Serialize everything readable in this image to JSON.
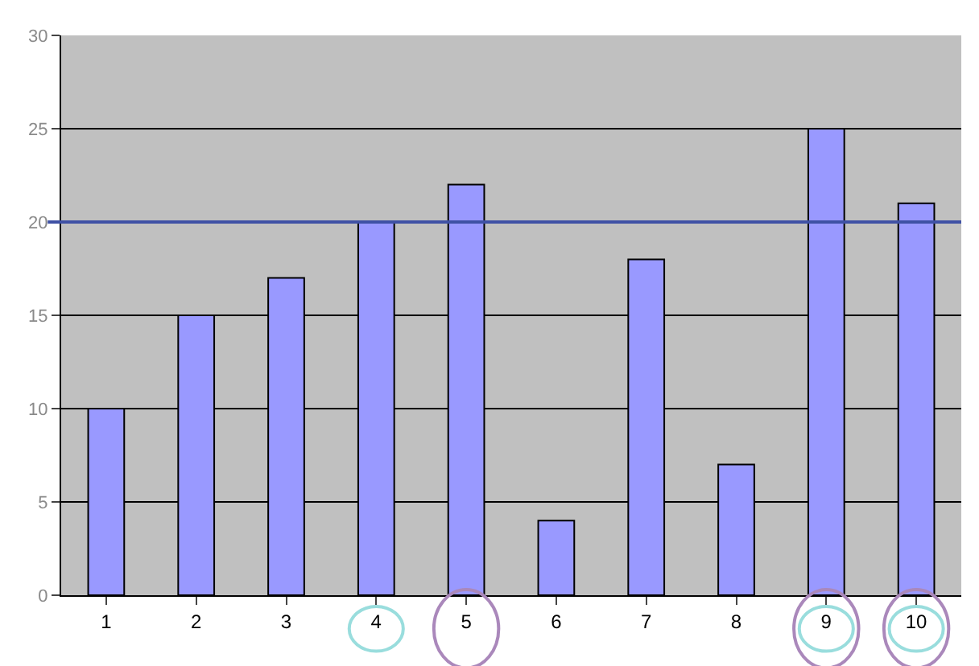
{
  "chart_data": {
    "type": "bar",
    "categories": [
      "1",
      "2",
      "3",
      "4",
      "5",
      "6",
      "7",
      "8",
      "9",
      "10"
    ],
    "values": [
      10,
      15,
      17,
      20,
      22,
      4,
      18,
      7,
      25,
      21
    ],
    "color": "#9999ff",
    "ylim": [
      0,
      30
    ],
    "yticks": [
      0,
      5,
      10,
      15,
      20,
      25,
      30
    ],
    "grid": "y",
    "ref_lines": [
      {
        "axis": "y",
        "value": 20,
        "color": "#3f51a5"
      }
    ]
  }
}
